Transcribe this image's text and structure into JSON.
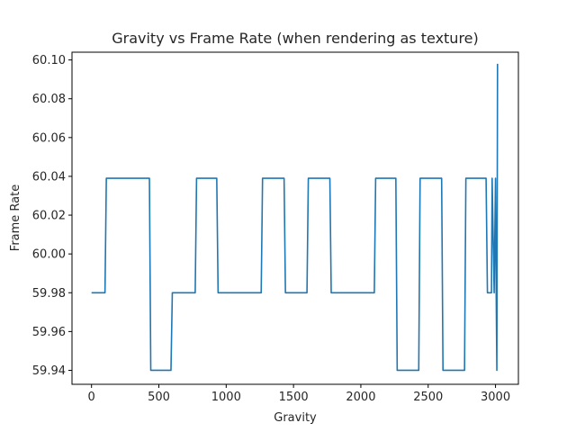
{
  "chart_data": {
    "type": "line",
    "title": "Gravity vs Frame Rate (when rendering as texture)",
    "xlabel": "Gravity",
    "ylabel": "Frame Rate",
    "xlim": [
      -145,
      3170
    ],
    "ylim": [
      59.9328,
      60.104
    ],
    "xticks": [
      0,
      500,
      1000,
      1500,
      2000,
      2500,
      3000
    ],
    "yticks": [
      59.94,
      59.96,
      59.98,
      60.0,
      60.02,
      60.04,
      60.06,
      60.08,
      60.1
    ],
    "ytick_labels": [
      "59.94",
      "59.96",
      "59.98",
      "60.00",
      "60.02",
      "60.04",
      "60.06",
      "60.08",
      "60.10"
    ],
    "grid": false,
    "series": [
      {
        "color": "#1f77b4",
        "x": [
          0,
          100,
          110,
          430,
          440,
          590,
          600,
          770,
          780,
          930,
          940,
          1260,
          1270,
          1430,
          1440,
          1600,
          1610,
          1770,
          1780,
          2100,
          2110,
          2260,
          2270,
          2430,
          2440,
          2600,
          2610,
          2770,
          2780,
          2930,
          2940,
          2970,
          2975,
          2990,
          3000,
          3005,
          3010,
          3015
        ],
        "y": [
          59.98,
          59.98,
          60.039,
          60.039,
          59.94,
          59.94,
          59.98,
          59.98,
          60.039,
          60.039,
          59.98,
          59.98,
          60.039,
          60.039,
          59.98,
          59.98,
          60.039,
          60.039,
          59.98,
          59.98,
          60.039,
          60.039,
          59.94,
          59.94,
          60.039,
          60.039,
          59.94,
          59.94,
          60.039,
          60.039,
          59.98,
          59.98,
          60.039,
          59.98,
          60.039,
          59.98,
          59.94,
          60.098
        ]
      }
    ]
  }
}
